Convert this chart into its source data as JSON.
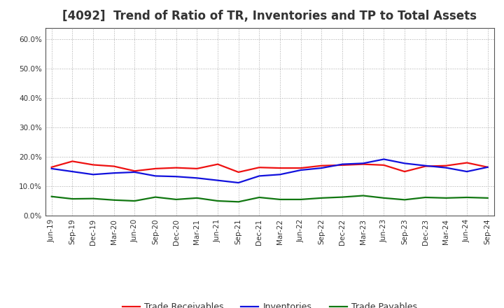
{
  "title": "[4092]  Trend of Ratio of TR, Inventories and TP to Total Assets",
  "title_fontsize": 12,
  "title_color": "#333333",
  "background_color": "#ffffff",
  "plot_bg_color": "#ffffff",
  "grid_color": "#aaaaaa",
  "x_labels": [
    "Jun-19",
    "Sep-19",
    "Dec-19",
    "Mar-20",
    "Jun-20",
    "Sep-20",
    "Dec-20",
    "Mar-21",
    "Jun-21",
    "Sep-21",
    "Dec-21",
    "Mar-22",
    "Jun-22",
    "Sep-22",
    "Dec-22",
    "Mar-23",
    "Jun-23",
    "Sep-23",
    "Dec-23",
    "Mar-24",
    "Jun-24",
    "Sep-24"
  ],
  "trade_receivables": [
    0.165,
    0.185,
    0.173,
    0.168,
    0.152,
    0.16,
    0.163,
    0.16,
    0.175,
    0.148,
    0.164,
    0.162,
    0.162,
    0.17,
    0.172,
    0.175,
    0.172,
    0.15,
    0.168,
    0.17,
    0.18,
    0.165
  ],
  "inventories": [
    0.16,
    0.15,
    0.14,
    0.145,
    0.148,
    0.135,
    0.133,
    0.128,
    0.12,
    0.112,
    0.135,
    0.14,
    0.155,
    0.162,
    0.175,
    0.178,
    0.192,
    0.178,
    0.17,
    0.163,
    0.15,
    0.165
  ],
  "trade_payables": [
    0.065,
    0.057,
    0.058,
    0.053,
    0.05,
    0.063,
    0.055,
    0.06,
    0.05,
    0.047,
    0.062,
    0.055,
    0.055,
    0.06,
    0.063,
    0.068,
    0.06,
    0.054,
    0.062,
    0.06,
    0.062,
    0.06
  ],
  "tr_color": "#ee1111",
  "inv_color": "#1111dd",
  "tp_color": "#117711",
  "ylim": [
    0.0,
    0.64
  ],
  "yticks": [
    0.0,
    0.1,
    0.2,
    0.3,
    0.4,
    0.5,
    0.6
  ],
  "legend_labels": [
    "Trade Receivables",
    "Inventories",
    "Trade Payables"
  ],
  "linewidth": 1.6,
  "tick_fontsize": 7.5,
  "spine_color": "#555555"
}
